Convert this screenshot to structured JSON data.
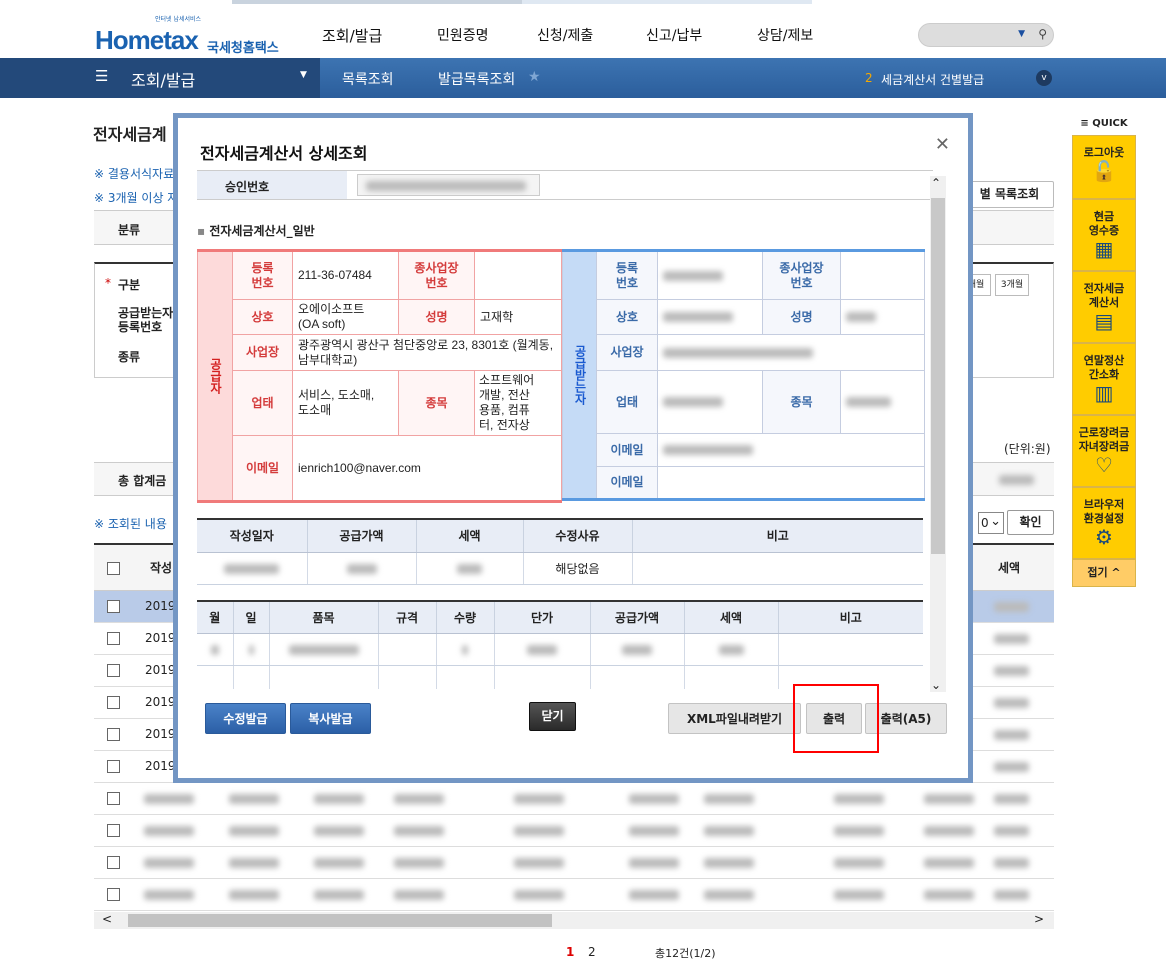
{
  "header": {
    "logo_text": "Hometax",
    "logo_korean": "국세청홈택스",
    "logo_sub": "안터넷 납세서비스",
    "gnb": [
      "조회/발급",
      "민원증명",
      "신청/제출",
      "신고/납부",
      "상담/제보"
    ],
    "search_placeholder": ""
  },
  "nav": {
    "menu": "조회/발급",
    "crumbs": [
      "목록조회",
      "발급목록조회"
    ],
    "notice_num": "2",
    "notice_text": "세금계산서 건별발급"
  },
  "quick": {
    "title": "≡ QUICK",
    "items": [
      {
        "label": "로그아웃",
        "icon": "unlock-icon"
      },
      {
        "label": "현금\n영수증",
        "icon": "receipt-search-icon"
      },
      {
        "label": "전자세금\n계산서",
        "icon": "invoice-search-icon"
      },
      {
        "label": "연말정산\n간소화",
        "icon": "table-search-icon"
      },
      {
        "label": "근로장려금\n자녀장려금",
        "icon": "heart-icon"
      },
      {
        "label": "브라우저\n환경설정",
        "icon": "gear-icon"
      }
    ],
    "fold": "접기 ^"
  },
  "page": {
    "title": "전자세금계",
    "notes": [
      "※ 결용서식자료",
      "※ 3개월 이상 자"
    ],
    "category_label": "분류",
    "list_button": "별 목록조회",
    "search": {
      "type_label": "구분",
      "receiver_reg": "공급받는자\n등록번호",
      "kind_label": "종류",
      "period_buttons": [
        "개월",
        "3개월"
      ]
    },
    "unit": "(단위:원)",
    "total_label": "총 합계금",
    "list_note": "※ 조회된 내용",
    "page_size": "0",
    "confirm": "확인",
    "columns": [
      "작성",
      "세액"
    ],
    "row_prefix": "2019-",
    "pagination": {
      "pages": [
        "1",
        "2"
      ],
      "current": "1",
      "total": "총12건(1/2)"
    }
  },
  "modal": {
    "title": "전자세금계산서 상세조회",
    "approval_label": "승인번호",
    "section": "전자세금계산서_일반",
    "supplier": {
      "side": "공급자",
      "reg_label": "등록\n번호",
      "reg": "211-36-07484",
      "sub_label": "종사업장\n번호",
      "sub": "",
      "name_label": "상호",
      "name": "오에이소프트\n(OA soft)",
      "ceo_label": "성명",
      "ceo": "고재학",
      "addr_label": "사업장",
      "addr": "광주광역시 광산구 첨단중앙로 23, 8301호 (월계동, 남부대학교)",
      "biz_label": "업태",
      "biz": "서비스, 도소매,\n도소매",
      "item_label": "종목",
      "item": "소프트웨어\n개발, 전산\n용품, 컴퓨\n터, 전자상",
      "email_label": "이메일",
      "email": "ienrich100@naver.com"
    },
    "receiver": {
      "side": "공급받는자",
      "reg_label": "등록\n번호",
      "sub_label": "종사업장\n번호",
      "name_label": "상호",
      "ceo_label": "성명",
      "addr_label": "사업장",
      "biz_label": "업태",
      "item_label": "종목",
      "email_label": "이메일",
      "email2_label": "이메일"
    },
    "summary": {
      "headers": [
        "작성일자",
        "공급가액",
        "세액",
        "수정사유",
        "비고"
      ],
      "reason": "해당없음"
    },
    "items": {
      "headers": [
        "월",
        "일",
        "품목",
        "규격",
        "수량",
        "단가",
        "공급가액",
        "세액",
        "비고"
      ]
    },
    "buttons": {
      "modify": "수정발급",
      "copy": "복사발급",
      "close": "닫기",
      "xml": "XML파일내려받기",
      "print": "출력",
      "print_a5": "출력(A5)"
    },
    "highlight_color": "#ff0000"
  }
}
